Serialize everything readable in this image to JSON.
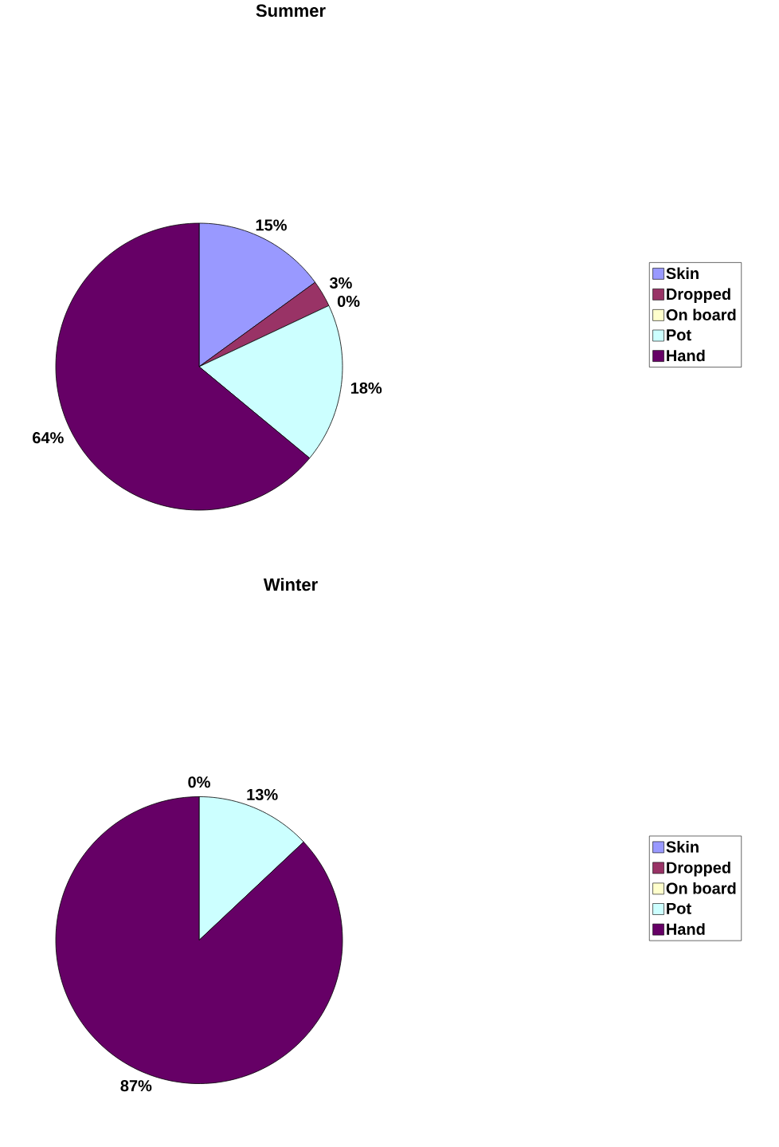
{
  "chart_data": [
    {
      "type": "pie",
      "title": "Summer",
      "categories": [
        "Skin",
        "Dropped",
        "On board",
        "Pot",
        "Hand"
      ],
      "values": [
        15,
        3,
        0,
        18,
        64
      ],
      "colors": [
        "#9999ff",
        "#993366",
        "#ffffcc",
        "#ccffff",
        "#660066"
      ],
      "value_labels": [
        "15%",
        "3%",
        "0%",
        "18%",
        "64%"
      ],
      "legend": "right"
    },
    {
      "type": "pie",
      "title": "Winter",
      "categories": [
        "Skin",
        "Dropped",
        "On board",
        "Pot",
        "Hand"
      ],
      "values": [
        0,
        0,
        0,
        13,
        87
      ],
      "colors": [
        "#9999ff",
        "#993366",
        "#ffffcc",
        "#ccffff",
        "#660066"
      ],
      "value_labels": [
        null,
        null,
        "0%",
        "13%",
        "87%"
      ],
      "legend": "right"
    }
  ]
}
